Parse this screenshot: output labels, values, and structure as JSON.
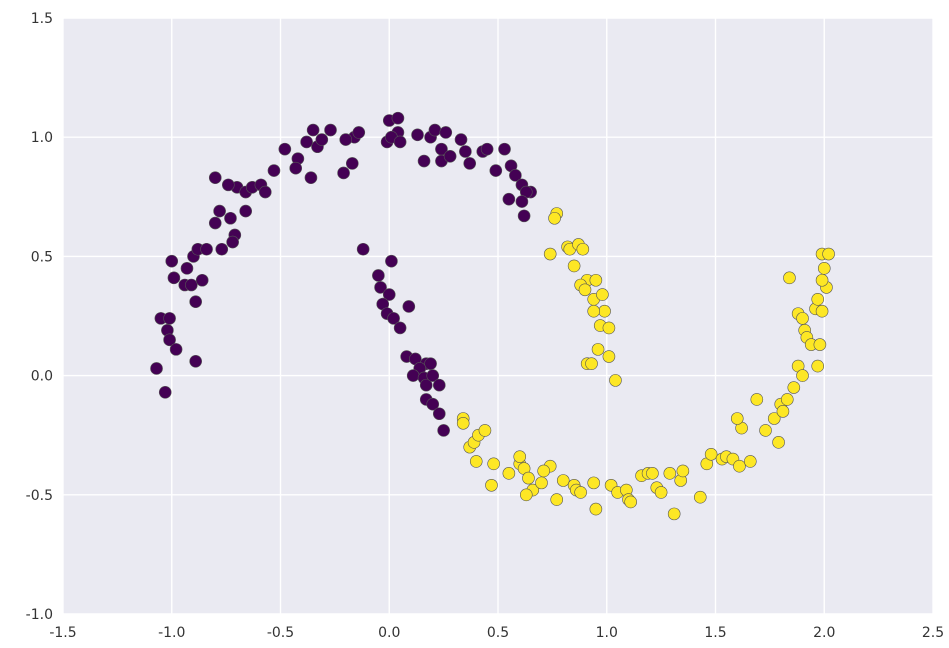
{
  "chart_data": {
    "type": "scatter",
    "title": "",
    "xlabel": "",
    "ylabel": "",
    "xlim": [
      -1.5,
      2.5
    ],
    "ylim": [
      -1.0,
      1.5
    ],
    "x_ticks": [
      -1.5,
      -1.0,
      -0.5,
      0.0,
      0.5,
      1.0,
      1.5,
      2.0,
      2.5
    ],
    "x_tick_labels": [
      "-1.5",
      "-1.0",
      "-0.5",
      "0.0",
      "0.5",
      "1.0",
      "1.5",
      "2.0",
      "2.5"
    ],
    "y_ticks": [
      -1.0,
      -0.5,
      0.0,
      0.5,
      1.0,
      1.5
    ],
    "y_tick_labels": [
      "-1.0",
      "-0.5",
      "0.0",
      "0.5",
      "1.0",
      "1.5"
    ],
    "grid": true,
    "legend": "none",
    "series": [
      {
        "color": "#440154",
        "points": [
          [
            -1.05,
            0.24
          ],
          [
            -1.01,
            0.24
          ],
          [
            -1.02,
            0.19
          ],
          [
            -1.01,
            0.15
          ],
          [
            -0.98,
            0.11
          ],
          [
            -1.07,
            0.03
          ],
          [
            -1.03,
            -0.07
          ],
          [
            -0.89,
            0.06
          ],
          [
            -1.0,
            0.48
          ],
          [
            -0.99,
            0.41
          ],
          [
            -0.94,
            0.38
          ],
          [
            -0.91,
            0.38
          ],
          [
            -0.93,
            0.45
          ],
          [
            -0.9,
            0.5
          ],
          [
            -0.88,
            0.53
          ],
          [
            -0.84,
            0.53
          ],
          [
            -0.86,
            0.4
          ],
          [
            -0.89,
            0.31
          ],
          [
            -0.77,
            0.53
          ],
          [
            -0.8,
            0.64
          ],
          [
            -0.78,
            0.69
          ],
          [
            -0.73,
            0.66
          ],
          [
            -0.71,
            0.59
          ],
          [
            -0.72,
            0.56
          ],
          [
            -0.66,
            0.69
          ],
          [
            -0.7,
            0.79
          ],
          [
            -0.66,
            0.77
          ],
          [
            -0.63,
            0.79
          ],
          [
            -0.59,
            0.8
          ],
          [
            -0.57,
            0.77
          ],
          [
            -0.53,
            0.86
          ],
          [
            -0.74,
            0.8
          ],
          [
            -0.8,
            0.83
          ],
          [
            -0.48,
            0.95
          ],
          [
            -0.42,
            0.91
          ],
          [
            -0.43,
            0.87
          ],
          [
            -0.36,
            0.83
          ],
          [
            -0.35,
            1.03
          ],
          [
            -0.33,
            0.96
          ],
          [
            -0.31,
            0.99
          ],
          [
            -0.27,
            1.03
          ],
          [
            -0.21,
            0.85
          ],
          [
            -0.16,
            1.0
          ],
          [
            -0.14,
            1.02
          ],
          [
            -0.2,
            0.99
          ],
          [
            -0.17,
            0.89
          ],
          [
            -0.38,
            0.98
          ],
          [
            0.0,
            1.07
          ],
          [
            0.04,
            1.08
          ],
          [
            0.04,
            1.02
          ],
          [
            -0.01,
            0.98
          ],
          [
            0.01,
            1.0
          ],
          [
            0.05,
            0.98
          ],
          [
            0.13,
            1.01
          ],
          [
            0.19,
            1.0
          ],
          [
            0.21,
            1.03
          ],
          [
            0.26,
            1.02
          ],
          [
            0.24,
            0.95
          ],
          [
            0.16,
            0.9
          ],
          [
            0.24,
            0.9
          ],
          [
            0.28,
            0.92
          ],
          [
            0.33,
            0.99
          ],
          [
            0.35,
            0.94
          ],
          [
            0.37,
            0.89
          ],
          [
            0.43,
            0.94
          ],
          [
            0.45,
            0.95
          ],
          [
            0.49,
            0.86
          ],
          [
            0.53,
            0.95
          ],
          [
            0.56,
            0.88
          ],
          [
            0.58,
            0.84
          ],
          [
            0.61,
            0.8
          ],
          [
            0.65,
            0.77
          ],
          [
            0.63,
            0.77
          ],
          [
            0.55,
            0.74
          ],
          [
            0.61,
            0.73
          ],
          [
            0.62,
            0.67
          ],
          [
            -0.12,
            0.53
          ],
          [
            -0.05,
            0.42
          ],
          [
            0.01,
            0.48
          ],
          [
            -0.04,
            0.37
          ],
          [
            0.0,
            0.34
          ],
          [
            -0.03,
            0.3
          ],
          [
            -0.01,
            0.26
          ],
          [
            0.02,
            0.24
          ],
          [
            0.05,
            0.2
          ],
          [
            0.09,
            0.29
          ],
          [
            0.08,
            0.08
          ],
          [
            0.12,
            0.07
          ],
          [
            0.17,
            0.05
          ],
          [
            0.19,
            0.05
          ],
          [
            0.14,
            0.03
          ],
          [
            0.11,
            0.0
          ],
          [
            0.16,
            -0.01
          ],
          [
            0.17,
            -0.04
          ],
          [
            0.2,
            0.0
          ],
          [
            0.23,
            -0.04
          ],
          [
            0.17,
            -0.1
          ],
          [
            0.2,
            -0.12
          ],
          [
            0.23,
            -0.16
          ],
          [
            0.25,
            -0.23
          ]
        ]
      },
      {
        "color": "#fde725",
        "points": [
          [
            0.77,
            0.68
          ],
          [
            0.76,
            0.66
          ],
          [
            0.74,
            0.51
          ],
          [
            0.82,
            0.54
          ],
          [
            0.83,
            0.53
          ],
          [
            0.87,
            0.55
          ],
          [
            0.89,
            0.53
          ],
          [
            0.85,
            0.46
          ],
          [
            0.91,
            0.4
          ],
          [
            0.95,
            0.4
          ],
          [
            0.88,
            0.38
          ],
          [
            0.9,
            0.36
          ],
          [
            0.94,
            0.32
          ],
          [
            0.98,
            0.34
          ],
          [
            0.99,
            0.27
          ],
          [
            0.94,
            0.27
          ],
          [
            0.97,
            0.21
          ],
          [
            1.01,
            0.2
          ],
          [
            0.96,
            0.11
          ],
          [
            1.01,
            0.08
          ],
          [
            0.91,
            0.05
          ],
          [
            0.93,
            0.05
          ],
          [
            1.04,
            -0.02
          ],
          [
            0.34,
            -0.18
          ],
          [
            0.34,
            -0.2
          ],
          [
            0.37,
            -0.3
          ],
          [
            0.39,
            -0.28
          ],
          [
            0.41,
            -0.25
          ],
          [
            0.44,
            -0.23
          ],
          [
            0.4,
            -0.36
          ],
          [
            0.48,
            -0.37
          ],
          [
            0.47,
            -0.46
          ],
          [
            0.55,
            -0.41
          ],
          [
            0.6,
            -0.37
          ],
          [
            0.6,
            -0.34
          ],
          [
            0.62,
            -0.39
          ],
          [
            0.64,
            -0.43
          ],
          [
            0.66,
            -0.48
          ],
          [
            0.63,
            -0.5
          ],
          [
            0.7,
            -0.45
          ],
          [
            0.74,
            -0.38
          ],
          [
            0.71,
            -0.4
          ],
          [
            0.77,
            -0.52
          ],
          [
            0.8,
            -0.44
          ],
          [
            0.85,
            -0.46
          ],
          [
            0.86,
            -0.48
          ],
          [
            0.88,
            -0.49
          ],
          [
            0.94,
            -0.45
          ],
          [
            0.95,
            -0.56
          ],
          [
            1.02,
            -0.46
          ],
          [
            1.05,
            -0.49
          ],
          [
            1.09,
            -0.48
          ],
          [
            1.1,
            -0.52
          ],
          [
            1.11,
            -0.53
          ],
          [
            1.16,
            -0.42
          ],
          [
            1.19,
            -0.41
          ],
          [
            1.21,
            -0.41
          ],
          [
            1.23,
            -0.47
          ],
          [
            1.25,
            -0.49
          ],
          [
            1.29,
            -0.41
          ],
          [
            1.31,
            -0.58
          ],
          [
            1.34,
            -0.44
          ],
          [
            1.35,
            -0.4
          ],
          [
            1.43,
            -0.51
          ],
          [
            1.46,
            -0.37
          ],
          [
            1.48,
            -0.33
          ],
          [
            1.53,
            -0.35
          ],
          [
            1.55,
            -0.34
          ],
          [
            1.58,
            -0.35
          ],
          [
            1.61,
            -0.38
          ],
          [
            1.62,
            -0.22
          ],
          [
            1.6,
            -0.18
          ],
          [
            1.66,
            -0.36
          ],
          [
            1.69,
            -0.1
          ],
          [
            1.73,
            -0.23
          ],
          [
            1.77,
            -0.18
          ],
          [
            1.79,
            -0.28
          ],
          [
            1.8,
            -0.12
          ],
          [
            1.81,
            -0.15
          ],
          [
            1.83,
            -0.1
          ],
          [
            1.86,
            -0.05
          ],
          [
            1.88,
            0.04
          ],
          [
            1.88,
            0.26
          ],
          [
            1.9,
            0.24
          ],
          [
            1.91,
            0.19
          ],
          [
            1.92,
            0.16
          ],
          [
            1.94,
            0.13
          ],
          [
            1.98,
            0.13
          ],
          [
            1.97,
            0.04
          ],
          [
            1.9,
            0.0
          ],
          [
            1.84,
            0.41
          ],
          [
            1.96,
            0.28
          ],
          [
            1.97,
            0.32
          ],
          [
            1.99,
            0.27
          ],
          [
            2.01,
            0.37
          ],
          [
            1.99,
            0.4
          ],
          [
            2.0,
            0.45
          ],
          [
            1.99,
            0.51
          ],
          [
            2.02,
            0.51
          ]
        ]
      }
    ]
  }
}
